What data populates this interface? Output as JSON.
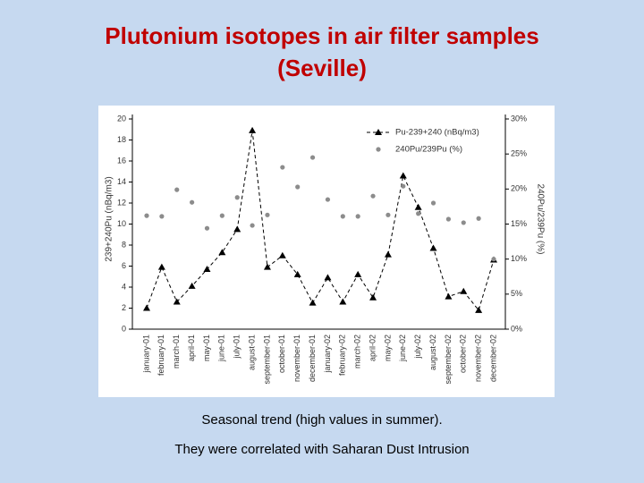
{
  "slide": {
    "title": [
      "Plutonium isotopes  in air filter samples",
      "(Seville)"
    ],
    "notes": [
      "Seasonal trend (high values in summer).",
      "They were correlated with Saharan Dust Intrusion"
    ]
  },
  "chart_data": {
    "type": "line",
    "y_label": "239+240Pu (nBq/m3)",
    "y2_label": "240Pu/239Pu (%)",
    "categories": [
      "january-01",
      "february-01",
      "march-01",
      "april-01",
      "may-01",
      "june-01",
      "july-01",
      "august-01",
      "september-01",
      "october-01",
      "november-01",
      "december-01",
      "january-02",
      "february-02",
      "march-02",
      "april-02",
      "may-02",
      "june-02",
      "july-02",
      "august-02",
      "september-02",
      "october-02",
      "november-02",
      "december-02"
    ],
    "series": [
      {
        "name": "Pu-239+240 (nBq/m3)",
        "color": "#000000",
        "marker": "triangle",
        "dashed": true,
        "values": [
          2,
          5.9,
          2.6,
          4.1,
          5.7,
          7.3,
          9.5,
          18.9,
          5.9,
          7.0,
          5.2,
          2.5,
          4.9,
          2.6,
          5.2,
          3.0,
          7.1,
          14.6,
          11.6,
          7.7,
          3.1,
          3.6,
          1.8,
          6.6
        ]
      },
      {
        "name": "240Pu/239Pu (%)",
        "color": "#8c8c8c",
        "marker": "circle",
        "dashed": false,
        "axis": "y2",
        "values": [
          16.2,
          16.1,
          19.9,
          18.1,
          14.4,
          16.2,
          18.8,
          14.8,
          16.3,
          23.1,
          20.3,
          24.5,
          18.5,
          16.1,
          16.1,
          19.0,
          16.3,
          20.4,
          16.5,
          18.0,
          15.7,
          15.2,
          15.8,
          10.0
        ]
      }
    ],
    "ylim": [
      0,
      20
    ],
    "yticks": [
      0,
      2,
      4,
      6,
      8,
      10,
      12,
      14,
      16,
      18,
      20
    ],
    "y2lim": [
      0,
      30
    ],
    "y2ticks": [
      {
        "value": 0,
        "label": "0%"
      },
      {
        "value": 5,
        "label": "5%"
      },
      {
        "value": 10,
        "label": "10%"
      },
      {
        "value": 15,
        "label": "15%"
      },
      {
        "value": 20,
        "label": "20%"
      },
      {
        "value": 25,
        "label": "25%"
      },
      {
        "value": 30,
        "label": "30%"
      }
    ],
    "legend": "upper right"
  }
}
